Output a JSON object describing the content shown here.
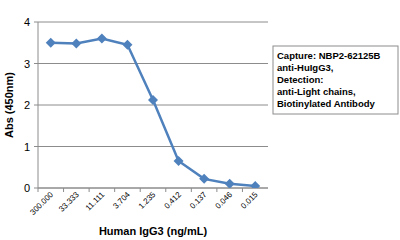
{
  "chart_data": {
    "type": "line",
    "categories": [
      "300.000",
      "33.333",
      "11.111",
      "3.704",
      "1.235",
      "0.412",
      "0.137",
      "0.046",
      "0.015"
    ],
    "values": [
      3.5,
      3.48,
      3.6,
      3.45,
      2.12,
      0.65,
      0.22,
      0.1,
      0.05
    ],
    "color": "#4f81bd",
    "marker": "diamond",
    "ylim": [
      0,
      4
    ],
    "yticks": [
      0,
      1,
      2,
      3,
      4
    ],
    "grid": true,
    "x_label": "Human IgG3 (ng/mL)",
    "y_label": "Abs (450nm)",
    "annotation": [
      "Capture: NBP2-62125B",
      "anti-HuIgG3,",
      "Detection:",
      "anti-Light chains,",
      "Biotinylated Antibody"
    ]
  }
}
